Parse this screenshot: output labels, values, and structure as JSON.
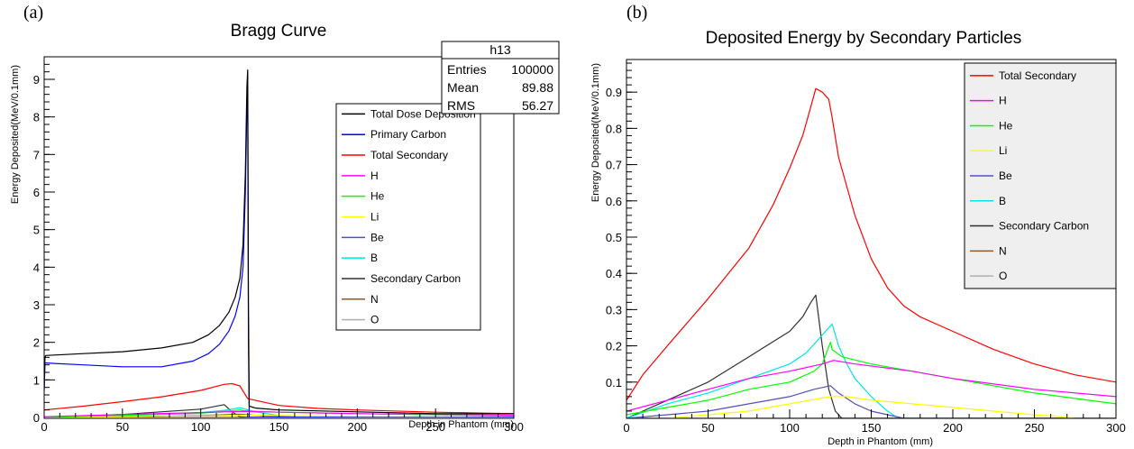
{
  "chart_data": [
    {
      "panel_label": "(a)",
      "type": "line",
      "title": "Bragg Curve",
      "xlabel": "Depth in Phantom (mm)",
      "ylabel": "Energy Deposited(MeV/0.1mm)",
      "xlim": [
        0,
        300
      ],
      "ylim": [
        0,
        9.6
      ],
      "xticks": [
        0,
        50,
        100,
        150,
        200,
        250,
        300
      ],
      "yticks": [
        1,
        2,
        3,
        4,
        5,
        6,
        7,
        8,
        9
      ],
      "ytick_labels": [
        "1",
        "2",
        "3",
        "4",
        "5",
        "6",
        "7",
        "8",
        "9"
      ],
      "zero_label": "0",
      "grid": false,
      "legend_position": "center-right",
      "stats_box": {
        "name": "h13",
        "rows": [
          {
            "label": "Entries",
            "value": "100000"
          },
          {
            "label": "Mean",
            "value": "89.88"
          },
          {
            "label": "RMS",
            "value": "56.27"
          }
        ]
      },
      "series": [
        {
          "name": "Total Dose Deposition",
          "color": "#000000",
          "x": [
            0,
            0.5,
            1,
            25,
            50,
            75,
            95,
            105,
            112,
            118,
            122,
            125,
            127,
            128.5,
            129.5,
            130,
            130.5,
            131,
            135,
            150,
            200,
            250,
            300
          ],
          "y": [
            0.8,
            1.6,
            1.65,
            1.7,
            1.75,
            1.85,
            2.0,
            2.2,
            2.45,
            2.8,
            3.2,
            3.7,
            4.6,
            6.5,
            8.8,
            9.25,
            3.0,
            0.3,
            0.25,
            0.2,
            0.15,
            0.1,
            0.1
          ]
        },
        {
          "name": "Primary Carbon",
          "color": "#0000ff",
          "x": [
            0,
            0.5,
            1,
            25,
            50,
            75,
            95,
            105,
            112,
            118,
            122,
            125,
            127,
            128.5,
            129.5,
            130,
            130.5,
            131,
            300
          ],
          "y": [
            0.7,
            1.45,
            1.45,
            1.4,
            1.35,
            1.35,
            1.5,
            1.7,
            1.95,
            2.3,
            2.7,
            3.2,
            4.0,
            6.0,
            8.3,
            8.6,
            2.0,
            0,
            0
          ]
        },
        {
          "name": "Total Secondary",
          "color": "#ff0000",
          "x": [
            0,
            25,
            50,
            75,
            100,
            115,
            120,
            125,
            130,
            150,
            175,
            200,
            250,
            300
          ],
          "y": [
            0.2,
            0.3,
            0.42,
            0.55,
            0.72,
            0.88,
            0.9,
            0.84,
            0.5,
            0.32,
            0.24,
            0.2,
            0.14,
            0.1
          ]
        },
        {
          "name": "H",
          "color": "#ff00ff",
          "x": [
            0,
            50,
            100,
            127,
            150,
            200,
            300
          ],
          "y": [
            0.02,
            0.08,
            0.13,
            0.16,
            0.14,
            0.1,
            0.06
          ]
        },
        {
          "name": "He",
          "color": "#00ff00",
          "x": [
            0,
            50,
            100,
            125,
            127,
            150,
            200,
            300
          ],
          "y": [
            0.01,
            0.05,
            0.11,
            0.2,
            0.18,
            0.14,
            0.1,
            0.04
          ]
        },
        {
          "name": "Li",
          "color": "#ffff00",
          "x": [
            0,
            50,
            100,
            127,
            150,
            200,
            250,
            300
          ],
          "y": [
            0.0,
            0.02,
            0.04,
            0.06,
            0.05,
            0.03,
            0.01,
            0.0
          ]
        },
        {
          "name": "Be",
          "color": "#5050c0",
          "x": [
            0,
            50,
            100,
            125,
            140,
            160,
            170,
            300
          ],
          "y": [
            0.0,
            0.02,
            0.05,
            0.09,
            0.04,
            0.01,
            0,
            0
          ]
        },
        {
          "name": "B",
          "color": "#00e5e5",
          "x": [
            0,
            50,
            100,
            115,
            125,
            135,
            150,
            160,
            170,
            300
          ],
          "y": [
            0.0,
            0.05,
            0.13,
            0.19,
            0.26,
            0.15,
            0.05,
            0.01,
            0,
            0
          ]
        },
        {
          "name": "Secondary Carbon",
          "color": "#303030",
          "x": [
            0,
            50,
            100,
            115,
            120,
            125,
            130,
            300
          ],
          "y": [
            0.0,
            0.08,
            0.22,
            0.34,
            0.15,
            0.02,
            0,
            0
          ]
        },
        {
          "name": "N",
          "color": "#8b5a2b",
          "x": [
            0,
            300
          ],
          "y": [
            0,
            0
          ]
        },
        {
          "name": "O",
          "color": "#b0b0b0",
          "x": [
            0,
            300
          ],
          "y": [
            0,
            0
          ]
        }
      ]
    },
    {
      "panel_label": "(b)",
      "type": "line",
      "title": "Deposited Energy by Secondary Particles",
      "xlabel": "Depth in Phantom (mm)",
      "ylabel": "Energy Deposited(MeV/0.1mm)",
      "xlim": [
        0,
        300
      ],
      "ylim": [
        0,
        0.99
      ],
      "xticks": [
        0,
        50,
        100,
        150,
        200,
        250,
        300
      ],
      "yticks": [
        0.1,
        0.2,
        0.3,
        0.4,
        0.5,
        0.6,
        0.7,
        0.8,
        0.9
      ],
      "ytick_labels": [
        "0.1",
        "0.2",
        "0.3",
        "0.4",
        "0.5",
        "0.6",
        "0.7",
        "0.8",
        "0.9"
      ],
      "zero_label": "",
      "grid": false,
      "legend_position": "top-right",
      "series": [
        {
          "name": "Total Secondary",
          "color": "#ff0000",
          "x": [
            0,
            10,
            25,
            50,
            75,
            90,
            100,
            108,
            113,
            116,
            120,
            124,
            126,
            130,
            140,
            150,
            160,
            170,
            180,
            200,
            225,
            250,
            275,
            300
          ],
          "y": [
            0.05,
            0.12,
            0.2,
            0.33,
            0.47,
            0.59,
            0.69,
            0.78,
            0.86,
            0.91,
            0.9,
            0.88,
            0.83,
            0.72,
            0.56,
            0.44,
            0.36,
            0.31,
            0.28,
            0.24,
            0.19,
            0.15,
            0.12,
            0.1
          ]
        },
        {
          "name": "H",
          "color": "#ff00ff",
          "x": [
            0,
            25,
            50,
            75,
            100,
            120,
            127,
            140,
            175,
            200,
            250,
            300
          ],
          "y": [
            0.02,
            0.05,
            0.08,
            0.11,
            0.13,
            0.15,
            0.16,
            0.15,
            0.13,
            0.11,
            0.08,
            0.06
          ]
        },
        {
          "name": "He",
          "color": "#00ff00",
          "x": [
            0,
            25,
            50,
            75,
            100,
            115,
            120,
            125,
            126,
            132,
            150,
            175,
            200,
            250,
            300
          ],
          "y": [
            0.01,
            0.03,
            0.05,
            0.08,
            0.1,
            0.13,
            0.15,
            0.21,
            0.19,
            0.17,
            0.15,
            0.13,
            0.11,
            0.07,
            0.04
          ]
        },
        {
          "name": "Li",
          "color": "#ffff00",
          "x": [
            0,
            25,
            50,
            75,
            100,
            125,
            135,
            150,
            175,
            200,
            225,
            250,
            265,
            275,
            300
          ],
          "y": [
            0.0,
            0.0,
            0.01,
            0.02,
            0.04,
            0.06,
            0.06,
            0.05,
            0.04,
            0.03,
            0.02,
            0.01,
            0.005,
            0,
            0
          ]
        },
        {
          "name": "Be",
          "color": "#5050c0",
          "x": [
            0,
            25,
            50,
            75,
            100,
            115,
            125,
            130,
            140,
            150,
            170,
            200,
            300
          ],
          "y": [
            0.0,
            0.01,
            0.02,
            0.04,
            0.06,
            0.08,
            0.09,
            0.07,
            0.04,
            0.02,
            0.0,
            0,
            0
          ]
        },
        {
          "name": "B",
          "color": "#00e5e5",
          "x": [
            0,
            25,
            50,
            75,
            100,
            110,
            118,
            124,
            126,
            130,
            135,
            140,
            150,
            160,
            165,
            170,
            300
          ],
          "y": [
            0.0,
            0.04,
            0.07,
            0.11,
            0.15,
            0.18,
            0.22,
            0.25,
            0.26,
            0.2,
            0.15,
            0.11,
            0.06,
            0.02,
            0.005,
            0,
            0
          ]
        },
        {
          "name": "Secondary Carbon",
          "color": "#303030",
          "x": [
            0,
            25,
            50,
            75,
            100,
            108,
            113,
            116,
            120,
            124,
            128,
            132,
            300
          ],
          "y": [
            0.0,
            0.05,
            0.1,
            0.17,
            0.24,
            0.28,
            0.32,
            0.34,
            0.2,
            0.08,
            0.02,
            0,
            0
          ]
        },
        {
          "name": "N",
          "color": "#8b5a2b",
          "x": [
            0,
            300
          ],
          "y": [
            0,
            0
          ]
        },
        {
          "name": "O",
          "color": "#b0b0b0",
          "x": [
            0,
            300
          ],
          "y": [
            0,
            0
          ]
        }
      ]
    }
  ]
}
